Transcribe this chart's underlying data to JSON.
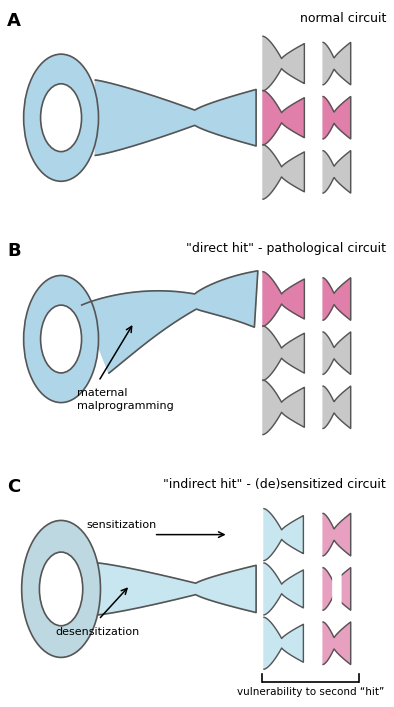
{
  "bg_color": "#ffffff",
  "light_blue": "#aed6e8",
  "light_blue_pale": "#c8e6f0",
  "pink": "#df7faa",
  "light_pink": "#e8a0c0",
  "gray": "#c8c8c8",
  "gray_pale": "#d8d8d8",
  "outline": "#555555",
  "panel_A_title": "normal circuit",
  "panel_B_title": "\"direct hit\" - pathological circuit",
  "panel_C_title": "\"indirect hit\" - (de)sensitized circuit",
  "label_A": "A",
  "label_B": "B",
  "label_C": "C",
  "text_maternal": "maternal\nmalprogramming",
  "text_sensitization": "sensitization",
  "text_desensitization": "desensitization",
  "text_vulnerability": "vulnerability to second “hit”"
}
